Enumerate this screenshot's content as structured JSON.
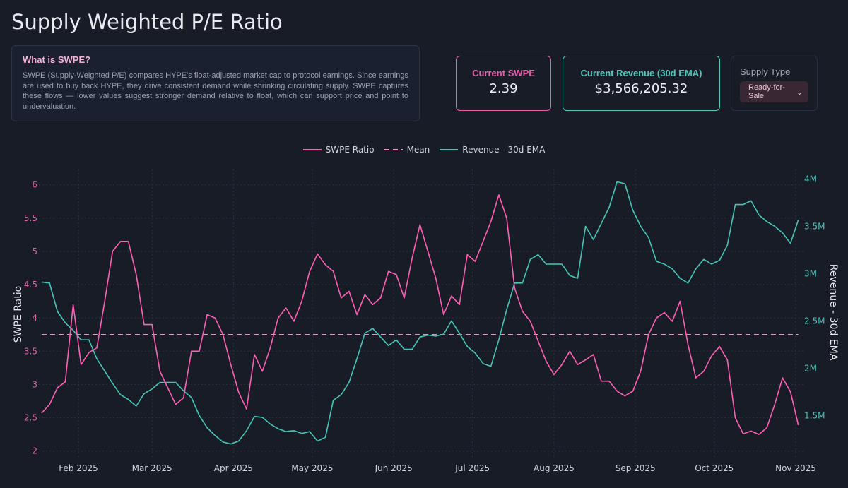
{
  "page": {
    "title": "Supply Weighted P/E Ratio"
  },
  "info": {
    "heading": "What is SWPE?",
    "body": "SWPE (Supply-Weighted P/E) compares HYPE's float-adjusted market cap to protocol earnings. Since earnings are used to buy back HYPE, they drive consistent demand while shrinking circulating supply. SWPE captures these flows — lower values suggest stronger demand relative to float, which can support price and point to undervaluation."
  },
  "cards": {
    "swpe_label": "Current SWPE",
    "swpe_value": "2.39",
    "revenue_label": "Current Revenue (30d EMA)",
    "revenue_value": "$3,566,205.32"
  },
  "supply": {
    "label": "Supply Type",
    "selected": "Ready-for-Sale",
    "icon": "chevron-down-icon"
  },
  "colors": {
    "swpe": "#ff5fb4",
    "mean": "#ff8cc8",
    "revenue": "#45c6b8",
    "background": "#181c27"
  },
  "chart_data": {
    "type": "line",
    "legend_position": "top-center",
    "grid": true,
    "ylabel": "SWPE Ratio",
    "y2label": "Revenue - 30d EMA",
    "ylim": [
      1.88,
      6.23
    ],
    "y2lim": [
      1040000,
      4100000
    ],
    "yticks": [
      2,
      2.5,
      3,
      3.5,
      4,
      4.5,
      5,
      5.5,
      6
    ],
    "ytick_labels": [
      "2",
      "2.5",
      "3",
      "3.5",
      "4",
      "4.5",
      "5",
      "5.5",
      "6"
    ],
    "y2ticks": [
      1500000,
      2000000,
      2500000,
      3000000,
      3500000,
      4000000
    ],
    "y2tick_labels": [
      "1.5M",
      "2M",
      "2.5M",
      "3M",
      "3.5M",
      "4M"
    ],
    "xticks": [
      "2025-02-01",
      "2025-03-01",
      "2025-04-01",
      "2025-05-01",
      "2025-06-01",
      "2025-07-01",
      "2025-08-01",
      "2025-09-01",
      "2025-10-01",
      "2025-11-01"
    ],
    "xtick_labels": [
      "Feb 2025",
      "Mar 2025",
      "Apr 2025",
      "May 2025",
      "Jun 2025",
      "Jul 2025",
      "Aug 2025",
      "Sep 2025",
      "Oct 2025",
      "Nov 2025"
    ],
    "x": [
      "2025-01-18",
      "2025-01-21",
      "2025-01-24",
      "2025-01-27",
      "2025-01-30",
      "2025-02-02",
      "2025-02-05",
      "2025-02-08",
      "2025-02-11",
      "2025-02-14",
      "2025-02-17",
      "2025-02-20",
      "2025-02-23",
      "2025-02-26",
      "2025-03-01",
      "2025-03-04",
      "2025-03-07",
      "2025-03-10",
      "2025-03-13",
      "2025-03-16",
      "2025-03-19",
      "2025-03-22",
      "2025-03-25",
      "2025-03-28",
      "2025-03-31",
      "2025-04-03",
      "2025-04-06",
      "2025-04-09",
      "2025-04-12",
      "2025-04-15",
      "2025-04-18",
      "2025-04-21",
      "2025-04-24",
      "2025-04-27",
      "2025-04-30",
      "2025-05-03",
      "2025-05-06",
      "2025-05-09",
      "2025-05-12",
      "2025-05-15",
      "2025-05-18",
      "2025-05-21",
      "2025-05-24",
      "2025-05-27",
      "2025-05-30",
      "2025-06-02",
      "2025-06-05",
      "2025-06-08",
      "2025-06-11",
      "2025-06-14",
      "2025-06-17",
      "2025-06-20",
      "2025-06-23",
      "2025-06-26",
      "2025-06-29",
      "2025-07-02",
      "2025-07-05",
      "2025-07-08",
      "2025-07-11",
      "2025-07-14",
      "2025-07-17",
      "2025-07-20",
      "2025-07-23",
      "2025-07-26",
      "2025-07-29",
      "2025-08-01",
      "2025-08-04",
      "2025-08-07",
      "2025-08-10",
      "2025-08-13",
      "2025-08-16",
      "2025-08-19",
      "2025-08-22",
      "2025-08-25",
      "2025-08-28",
      "2025-08-31",
      "2025-09-03",
      "2025-09-06",
      "2025-09-09",
      "2025-09-12",
      "2025-09-15",
      "2025-09-18",
      "2025-09-21",
      "2025-09-24",
      "2025-09-27",
      "2025-09-30",
      "2025-10-03",
      "2025-10-06",
      "2025-10-09",
      "2025-10-12",
      "2025-10-15",
      "2025-10-18",
      "2025-10-21",
      "2025-10-24",
      "2025-10-27",
      "2025-10-30",
      "2025-11-02"
    ],
    "series": [
      {
        "name": "SWPE Ratio",
        "axis": "left",
        "style": "solid",
        "values": [
          2.57,
          2.7,
          2.95,
          3.04,
          4.2,
          3.3,
          3.48,
          3.55,
          4.25,
          5.0,
          5.15,
          5.15,
          4.65,
          3.9,
          3.9,
          3.2,
          2.95,
          2.7,
          2.8,
          3.5,
          3.5,
          4.05,
          4.0,
          3.75,
          3.3,
          2.88,
          2.63,
          3.45,
          3.2,
          3.55,
          4.0,
          4.15,
          3.95,
          4.25,
          4.7,
          4.96,
          4.8,
          4.7,
          4.3,
          4.4,
          4.05,
          4.35,
          4.2,
          4.3,
          4.7,
          4.65,
          4.3,
          4.9,
          5.4,
          5.0,
          4.6,
          4.05,
          4.33,
          4.2,
          4.95,
          4.85,
          5.15,
          5.45,
          5.85,
          5.5,
          4.45,
          4.1,
          3.95,
          3.65,
          3.35,
          3.15,
          3.3,
          3.5,
          3.3,
          3.37,
          3.45,
          3.05,
          3.05,
          2.9,
          2.83,
          2.9,
          3.2,
          3.75,
          4.0,
          4.08,
          3.95,
          4.25,
          3.6,
          3.1,
          3.2,
          3.43,
          3.57,
          3.37,
          2.5,
          2.26,
          2.3,
          2.25,
          2.35,
          2.7,
          3.1,
          2.89,
          2.39
        ]
      },
      {
        "name": "Mean",
        "axis": "left",
        "style": "dashed",
        "value": 3.75
      },
      {
        "name": "Revenue - 30d EMA",
        "axis": "right",
        "style": "solid",
        "values": [
          2910000,
          2900000,
          2600000,
          2480000,
          2400000,
          2300000,
          2300000,
          2100000,
          1970000,
          1840000,
          1720000,
          1670000,
          1600000,
          1730000,
          1780000,
          1850000,
          1850000,
          1850000,
          1760000,
          1690000,
          1500000,
          1370000,
          1290000,
          1220000,
          1200000,
          1230000,
          1340000,
          1490000,
          1480000,
          1410000,
          1360000,
          1330000,
          1340000,
          1310000,
          1330000,
          1230000,
          1270000,
          1660000,
          1720000,
          1850000,
          2100000,
          2370000,
          2420000,
          2330000,
          2240000,
          2300000,
          2200000,
          2200000,
          2330000,
          2350000,
          2340000,
          2360000,
          2500000,
          2370000,
          2230000,
          2160000,
          2050000,
          2020000,
          2300000,
          2620000,
          2900000,
          2900000,
          3150000,
          3200000,
          3100000,
          3100000,
          3100000,
          2980000,
          2950000,
          3500000,
          3360000,
          3530000,
          3700000,
          3970000,
          3950000,
          3670000,
          3500000,
          3380000,
          3130000,
          3100000,
          3050000,
          2950000,
          2900000,
          3050000,
          3150000,
          3100000,
          3140000,
          3300000,
          3730000,
          3730000,
          3770000,
          3620000,
          3550000,
          3500000,
          3430000,
          3320000,
          3566205
        ]
      }
    ]
  }
}
